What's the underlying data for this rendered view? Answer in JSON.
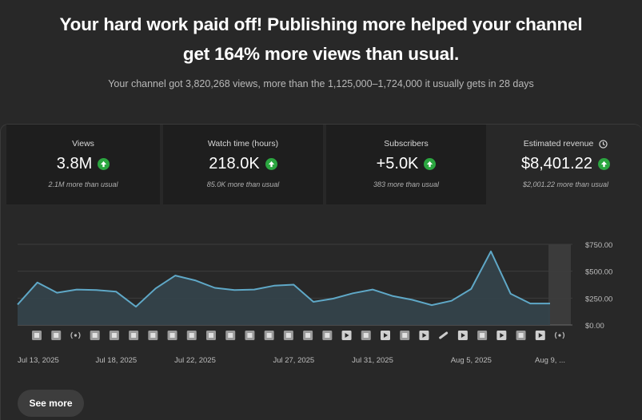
{
  "headline": {
    "line1": "Your hard work paid off! Publishing more helped your channel",
    "line2": "get 164% more views than usual."
  },
  "subline": "Your channel got 3,820,268 views, more than the 1,125,000–1,724,000 it usually gets in 28 days",
  "metrics": [
    {
      "label": "Views",
      "value": "3.8M",
      "note": "2.1M more than usual",
      "icon": "arrow-up-icon"
    },
    {
      "label": "Watch time (hours)",
      "value": "218.0K",
      "note": "85.0K more than usual",
      "icon": "arrow-up-icon"
    },
    {
      "label": "Subscribers",
      "value": "+5.0K",
      "note": "383 more than usual",
      "icon": "arrow-up-icon"
    },
    {
      "label": "Estimated revenue",
      "value": "$8,401.22",
      "note": "$2,001.22 more than usual",
      "icon": "arrow-up-icon"
    }
  ],
  "colors": {
    "accent_line": "#5fa8c7",
    "up_badge": "#2ba640"
  },
  "chart_data": {
    "type": "area",
    "x": [
      "Jul 13, 2025",
      "Jul 14, 2025",
      "Jul 15, 2025",
      "Jul 16, 2025",
      "Jul 17, 2025",
      "Jul 18, 2025",
      "Jul 19, 2025",
      "Jul 20, 2025",
      "Jul 21, 2025",
      "Jul 22, 2025",
      "Jul 23, 2025",
      "Jul 24, 2025",
      "Jul 25, 2025",
      "Jul 26, 2025",
      "Jul 27, 2025",
      "Jul 28, 2025",
      "Jul 29, 2025",
      "Jul 30, 2025",
      "Jul 31, 2025",
      "Aug 1, 2025",
      "Aug 2, 2025",
      "Aug 3, 2025",
      "Aug 4, 2025",
      "Aug 5, 2025",
      "Aug 6, 2025",
      "Aug 7, 2025",
      "Aug 8, 2025",
      "Aug 9, 2025"
    ],
    "values": [
      190,
      395,
      300,
      330,
      325,
      310,
      170,
      340,
      460,
      415,
      345,
      325,
      330,
      365,
      375,
      215,
      245,
      295,
      330,
      270,
      235,
      185,
      225,
      335,
      685,
      290,
      200,
      200
    ],
    "ylim": [
      0,
      750
    ],
    "y_ticks": [
      "$0.00",
      "$250.00",
      "$500.00",
      "$750.00"
    ],
    "x_tick_labels": [
      "Jul 13, 2025",
      "Jul 18, 2025",
      "Jul 22, 2025",
      "Jul 27, 2025",
      "Jul 31, 2025",
      "Aug 5, 2025",
      "Aug 9, ..."
    ],
    "x_tick_indices": [
      0,
      5,
      9,
      14,
      18,
      23,
      27
    ],
    "grid": true,
    "markers": [
      "video",
      "video",
      "live",
      "video",
      "video",
      "video",
      "video",
      "video",
      "video",
      "video",
      "video",
      "video",
      "video",
      "video",
      "video",
      "video",
      "short",
      "video",
      "short",
      "video",
      "short",
      "link",
      "short",
      "video",
      "short",
      "video",
      "short",
      "live"
    ]
  },
  "see_more": "See more"
}
